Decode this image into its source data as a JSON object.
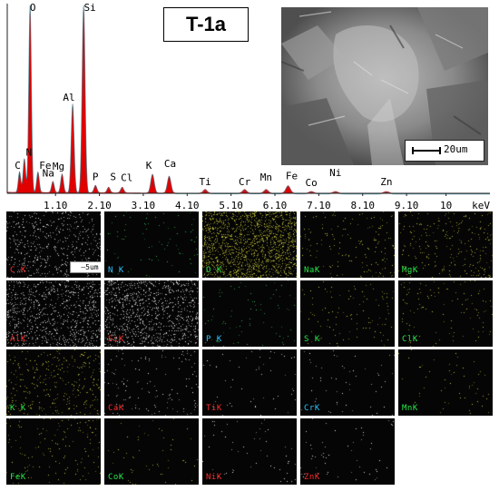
{
  "sample_title": "T-1a",
  "sem": {
    "scale_label": "20um"
  },
  "chart_data": {
    "type": "line",
    "title": "",
    "xlabel": "keV",
    "ylabel": "",
    "xlim": [
      0,
      11
    ],
    "ylim": [
      0,
      100
    ],
    "x_tick_labels": [
      "1.10",
      "2.10",
      "3.10",
      "4.10",
      "5.10",
      "6.10",
      "7.10",
      "8.10",
      "9.10",
      "10"
    ],
    "x_tick_values": [
      1.1,
      2.1,
      3.1,
      4.1,
      5.1,
      6.1,
      7.1,
      8.1,
      9.1,
      10
    ],
    "peaks": [
      {
        "element": "C",
        "x": 0.28,
        "y": 11
      },
      {
        "element": "N",
        "x": 0.39,
        "y": 18
      },
      {
        "element": "O",
        "x": 0.52,
        "y": 99
      },
      {
        "element": "Fe",
        "x": 0.7,
        "y": 11
      },
      {
        "element": "Na",
        "x": 1.04,
        "y": 6
      },
      {
        "element": "Mg",
        "x": 1.25,
        "y": 10
      },
      {
        "element": "Al",
        "x": 1.49,
        "y": 47
      },
      {
        "element": "Si",
        "x": 1.74,
        "y": 99
      },
      {
        "element": "P",
        "x": 2.01,
        "y": 4
      },
      {
        "element": "S",
        "x": 2.31,
        "y": 3
      },
      {
        "element": "Cl",
        "x": 2.62,
        "y": 3
      },
      {
        "element": "K",
        "x": 3.31,
        "y": 10
      },
      {
        "element": "Ca",
        "x": 3.69,
        "y": 9
      },
      {
        "element": "Ti",
        "x": 4.51,
        "y": 2
      },
      {
        "element": "Cr",
        "x": 5.41,
        "y": 2
      },
      {
        "element": "Mn",
        "x": 5.9,
        "y": 2
      },
      {
        "element": "Fe",
        "x": 6.4,
        "y": 4
      },
      {
        "element": "Co",
        "x": 6.93,
        "y": 1
      },
      {
        "element": "Ni",
        "x": 7.48,
        "y": 1
      },
      {
        "element": "Zn",
        "x": 8.64,
        "y": 1
      }
    ],
    "colors": {
      "fill": "#e00000",
      "overlay": "#3a8a9a",
      "axis": "#222222",
      "labels": "#000000"
    }
  },
  "maps": [
    {
      "label": "C K",
      "color": "#ff2a2a",
      "dot_color": "#e8e8e8",
      "density": 0.18,
      "show_scale": true,
      "scale_label": "5um"
    },
    {
      "label": "N K",
      "color": "#2ec4ff",
      "dot_color": "#39c85a",
      "density": 0.03
    },
    {
      "label": "O K",
      "color": "#27e84a",
      "dot_color": "#c9c73a",
      "density": 0.55
    },
    {
      "label": "NaK",
      "color": "#27e84a",
      "dot_color": "#c9c73a",
      "density": 0.06
    },
    {
      "label": "MgK",
      "color": "#27e84a",
      "dot_color": "#c9c73a",
      "density": 0.09
    },
    {
      "label": "AlK",
      "color": "#ff2a2a",
      "dot_color": "#e8e8e8",
      "density": 0.3
    },
    {
      "label": "SiK",
      "color": "#ff2a2a",
      "dot_color": "#e8e8e8",
      "density": 0.34
    },
    {
      "label": "P K",
      "color": "#2ec4ff",
      "dot_color": "#39c85a",
      "density": 0.03
    },
    {
      "label": "S K",
      "color": "#27e84a",
      "dot_color": "#c9c73a",
      "density": 0.04
    },
    {
      "label": "ClK",
      "color": "#27e84a",
      "dot_color": "#c9c73a",
      "density": 0.04
    },
    {
      "label": "K K",
      "color": "#27e84a",
      "dot_color": "#c9c73a",
      "density": 0.12
    },
    {
      "label": "CaK",
      "color": "#ff2a2a",
      "dot_color": "#e8e8e8",
      "density": 0.05
    },
    {
      "label": "TiK",
      "color": "#ff2a2a",
      "dot_color": "#e8e8e8",
      "density": 0.02
    },
    {
      "label": "CrK",
      "color": "#2ec4ff",
      "dot_color": "#e8e8e8",
      "density": 0.02
    },
    {
      "label": "MnK",
      "color": "#27e84a",
      "dot_color": "#c9c73a",
      "density": 0.02
    },
    {
      "label": "FeK",
      "color": "#27e84a",
      "dot_color": "#c9c73a",
      "density": 0.05
    },
    {
      "label": "CoK",
      "color": "#27e84a",
      "dot_color": "#c9c73a",
      "density": 0.02
    },
    {
      "label": "NiK",
      "color": "#ff2a2a",
      "dot_color": "#e8e8e8",
      "density": 0.02
    },
    {
      "label": "ZnK",
      "color": "#ff2a2a",
      "dot_color": "#e8e8e8",
      "density": 0.02
    }
  ]
}
